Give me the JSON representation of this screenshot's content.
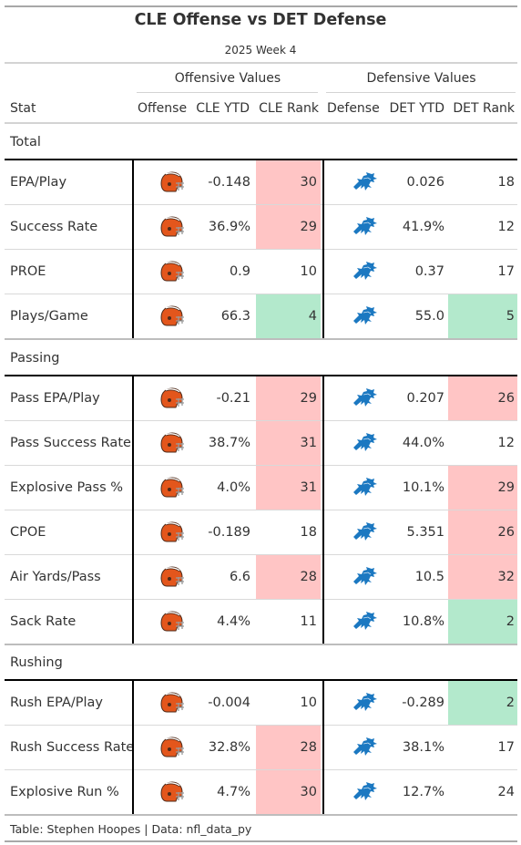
{
  "title": "CLE Offense vs DET Defense",
  "subtitle": "2025 Week 4",
  "spanners": {
    "offense": "Offensive Values",
    "defense": "Defensive Values"
  },
  "columns": {
    "stat": "Stat",
    "offense": "Offense",
    "cle_ytd": "CLE YTD",
    "cle_rank": "CLE Rank",
    "defense": "Defense",
    "det_ytd": "DET YTD",
    "det_rank": "DET Rank"
  },
  "colors": {
    "bad_rank": "#ffc5c5",
    "good_rank": "#b3e9cc",
    "browns_orange": "#e3561c",
    "browns_brown": "#4b2a1a",
    "lions_blue": "#1b78c1"
  },
  "icons": {
    "offense": "browns-helmet-icon",
    "defense": "lions-logo-icon"
  },
  "groups": [
    {
      "label": "Total",
      "rows": [
        {
          "stat": "EPA/Play",
          "cle_ytd": "-0.148",
          "cle_rank": "30",
          "det_ytd": "0.026",
          "det_rank": "18",
          "cle_fill": "bad",
          "det_fill": ""
        },
        {
          "stat": "Success Rate",
          "cle_ytd": "36.9%",
          "cle_rank": "29",
          "det_ytd": "41.9%",
          "det_rank": "12",
          "cle_fill": "bad",
          "det_fill": ""
        },
        {
          "stat": "PROE",
          "cle_ytd": "0.9",
          "cle_rank": "10",
          "det_ytd": "0.37",
          "det_rank": "17",
          "cle_fill": "",
          "det_fill": ""
        },
        {
          "stat": "Plays/Game",
          "cle_ytd": "66.3",
          "cle_rank": "4",
          "det_ytd": "55.0",
          "det_rank": "5",
          "cle_fill": "good",
          "det_fill": "good"
        }
      ]
    },
    {
      "label": "Passing",
      "rows": [
        {
          "stat": "Pass EPA/Play",
          "cle_ytd": "-0.21",
          "cle_rank": "29",
          "det_ytd": "0.207",
          "det_rank": "26",
          "cle_fill": "bad",
          "det_fill": "bad"
        },
        {
          "stat": "Pass Success Rate",
          "cle_ytd": "38.7%",
          "cle_rank": "31",
          "det_ytd": "44.0%",
          "det_rank": "12",
          "cle_fill": "bad",
          "det_fill": ""
        },
        {
          "stat": "Explosive Pass %",
          "cle_ytd": "4.0%",
          "cle_rank": "31",
          "det_ytd": "10.1%",
          "det_rank": "29",
          "cle_fill": "bad",
          "det_fill": "bad"
        },
        {
          "stat": "CPOE",
          "cle_ytd": "-0.189",
          "cle_rank": "18",
          "det_ytd": "5.351",
          "det_rank": "26",
          "cle_fill": "",
          "det_fill": "bad"
        },
        {
          "stat": "Air Yards/Pass",
          "cle_ytd": "6.6",
          "cle_rank": "28",
          "det_ytd": "10.5",
          "det_rank": "32",
          "cle_fill": "bad",
          "det_fill": "bad"
        },
        {
          "stat": "Sack Rate",
          "cle_ytd": "4.4%",
          "cle_rank": "11",
          "det_ytd": "10.8%",
          "det_rank": "2",
          "cle_fill": "",
          "det_fill": "good"
        }
      ]
    },
    {
      "label": "Rushing",
      "rows": [
        {
          "stat": "Rush EPA/Play",
          "cle_ytd": "-0.004",
          "cle_rank": "10",
          "det_ytd": "-0.289",
          "det_rank": "2",
          "cle_fill": "",
          "det_fill": "good"
        },
        {
          "stat": "Rush Success Rate",
          "cle_ytd": "32.8%",
          "cle_rank": "28",
          "det_ytd": "38.1%",
          "det_rank": "17",
          "cle_fill": "bad",
          "det_fill": ""
        },
        {
          "stat": "Explosive Run %",
          "cle_ytd": "4.7%",
          "cle_rank": "30",
          "det_ytd": "12.7%",
          "det_rank": "24",
          "cle_fill": "bad",
          "det_fill": ""
        }
      ]
    }
  ],
  "footer": "Table: Stephen Hoopes | Data: nfl_data_py"
}
